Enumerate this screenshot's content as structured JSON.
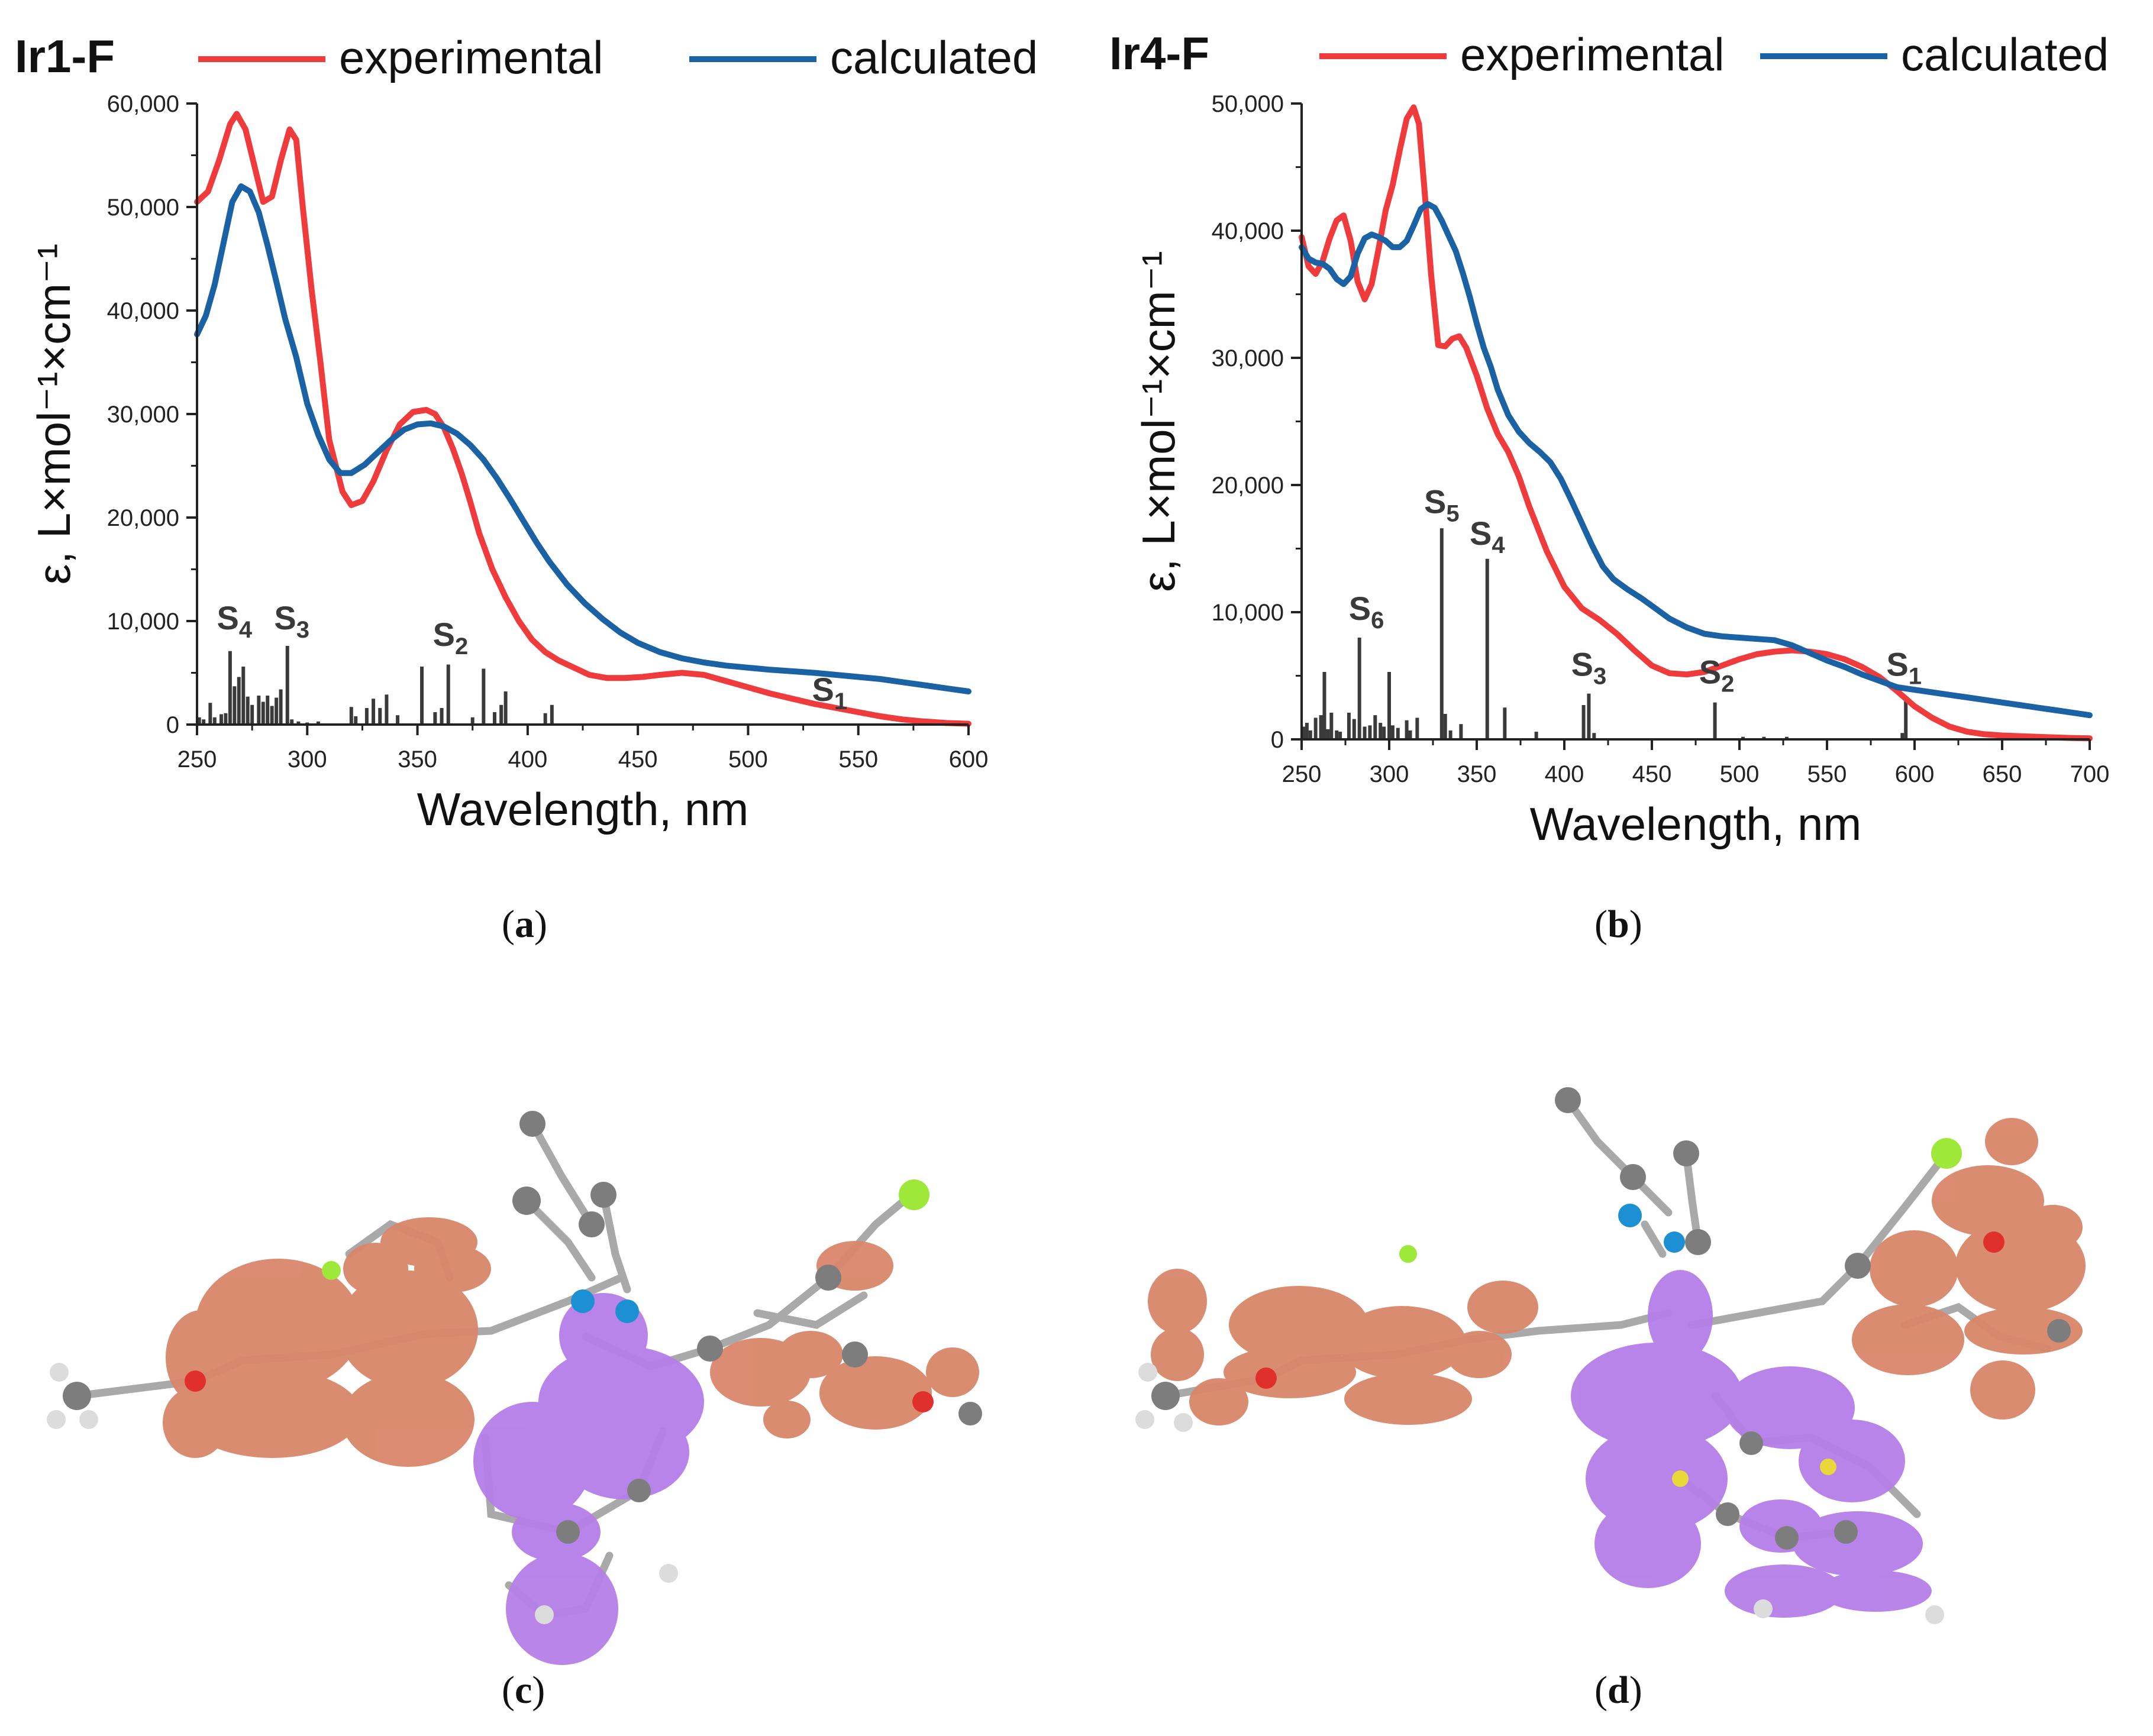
{
  "chart_data": [
    {
      "type": "line",
      "panel_label": "a",
      "compound": "Ir1-F",
      "legend": [
        "experimental",
        "calculated"
      ],
      "colors": {
        "experimental": "#ef3b3b",
        "calculated": "#1a62a3",
        "bars": "#3a3a3a"
      },
      "xlabel": "Wavelength, nm",
      "ylabel": "ε, L×mol⁻¹×cm⁻¹",
      "xlim": [
        250,
        600
      ],
      "ylim": [
        0,
        60000
      ],
      "xticks": [
        250,
        300,
        350,
        400,
        450,
        500,
        550,
        600
      ],
      "yticks": [
        0,
        10000,
        20000,
        30000,
        40000,
        50000,
        60000
      ],
      "ytick_labels": [
        "0",
        "10,000",
        "20,000",
        "30,000",
        "40,000",
        "50,000",
        "60,000"
      ],
      "series": [
        {
          "name": "experimental",
          "x": [
            250,
            255,
            260,
            265,
            268,
            272,
            276,
            280,
            284,
            288,
            292,
            295,
            298,
            302,
            306,
            310,
            316,
            320,
            325,
            330,
            336,
            342,
            348,
            354,
            358,
            362,
            366,
            370,
            374,
            378,
            384,
            390,
            396,
            402,
            408,
            414,
            420,
            428,
            436,
            444,
            452,
            460,
            470,
            480,
            490,
            500,
            510,
            520,
            530,
            540,
            550,
            560,
            570,
            580,
            590,
            600
          ],
          "y": [
            50500,
            51500,
            54500,
            58000,
            59000,
            57500,
            54000,
            50500,
            51000,
            54500,
            57500,
            56500,
            50000,
            42000,
            35000,
            27500,
            22500,
            21200,
            21600,
            23500,
            26500,
            29000,
            30200,
            30400,
            30000,
            28700,
            26700,
            24300,
            21500,
            18500,
            15000,
            12300,
            10000,
            8200,
            7000,
            6200,
            5600,
            4800,
            4500,
            4500,
            4600,
            4800,
            5000,
            4800,
            4200,
            3600,
            3000,
            2500,
            2000,
            1600,
            1200,
            800,
            500,
            300,
            150,
            80
          ]
        },
        {
          "name": "calculated",
          "x": [
            250,
            254,
            258,
            262,
            266,
            270,
            274,
            278,
            282,
            286,
            290,
            295,
            300,
            305,
            310,
            315,
            320,
            326,
            332,
            338,
            344,
            350,
            356,
            362,
            368,
            374,
            380,
            386,
            392,
            398,
            404,
            410,
            418,
            426,
            434,
            442,
            450,
            460,
            470,
            480,
            490,
            500,
            510,
            520,
            530,
            540,
            550,
            560,
            570,
            580,
            590,
            600
          ],
          "y": [
            37700,
            39500,
            42500,
            46500,
            50500,
            52000,
            51500,
            49500,
            46300,
            42800,
            39200,
            35500,
            31000,
            28000,
            25600,
            24300,
            24300,
            25100,
            26300,
            27500,
            28500,
            29000,
            29100,
            28800,
            28100,
            27000,
            25600,
            23800,
            21800,
            19700,
            17600,
            15700,
            13500,
            11700,
            10200,
            8900,
            7900,
            7000,
            6400,
            6000,
            5700,
            5500,
            5300,
            5150,
            5000,
            4800,
            4600,
            4400,
            4100,
            3800,
            3500,
            3200
          ]
        }
      ],
      "transitions": {
        "x": [
          251,
          253,
          256,
          258,
          261,
          263,
          265,
          267,
          269,
          271,
          273,
          275,
          278,
          280,
          282,
          284,
          286,
          288,
          291,
          293,
          296,
          300,
          305,
          320,
          322,
          327,
          330,
          333,
          336,
          341,
          352,
          358,
          361,
          364,
          375,
          380,
          385,
          388,
          390,
          408,
          411
        ],
        "f": [
          700,
          500,
          2100,
          700,
          1000,
          1100,
          7100,
          3700,
          4600,
          5600,
          2700,
          1900,
          2800,
          2200,
          2800,
          1800,
          2600,
          3400,
          7600,
          500,
          300,
          200,
          300,
          1700,
          800,
          1600,
          2500,
          1600,
          2900,
          900,
          5600,
          1200,
          1600,
          5800,
          700,
          5400,
          1200,
          1900,
          3200,
          1100,
          1900
        ]
      },
      "state_labels": [
        {
          "main": "S",
          "sub": "4",
          "x": 267,
          "y": 9200
        },
        {
          "main": "S",
          "sub": "3",
          "x": 293,
          "y": 9200
        },
        {
          "main": "S",
          "sub": "2",
          "x": 365,
          "y": 7600
        },
        {
          "main": "S",
          "sub": "1",
          "x": 537,
          "y": 2300
        }
      ]
    },
    {
      "type": "line",
      "panel_label": "b",
      "compound": "Ir4-F",
      "legend": [
        "experimental",
        "calculated"
      ],
      "colors": {
        "experimental": "#ef3b3b",
        "calculated": "#1a62a3",
        "bars": "#3a3a3a"
      },
      "xlabel": "Wavelength, nm",
      "ylabel": "ε, L×mol⁻¹×cm⁻¹",
      "xlim": [
        250,
        700
      ],
      "ylim": [
        0,
        50000
      ],
      "xticks": [
        250,
        300,
        350,
        400,
        450,
        500,
        550,
        600,
        650,
        700
      ],
      "yticks": [
        0,
        10000,
        20000,
        30000,
        40000,
        50000
      ],
      "ytick_labels": [
        "0",
        "10,000",
        "20,000",
        "30,000",
        "40,000",
        "50,000"
      ],
      "series": [
        {
          "name": "experimental",
          "x": [
            250,
            254,
            258,
            262,
            266,
            270,
            274,
            278,
            282,
            286,
            290,
            294,
            298,
            302,
            306,
            310,
            314,
            317,
            320,
            324,
            328,
            332,
            336,
            340,
            344,
            350,
            356,
            362,
            368,
            374,
            380,
            390,
            400,
            410,
            420,
            430,
            440,
            450,
            460,
            470,
            480,
            490,
            500,
            510,
            520,
            530,
            540,
            550,
            560,
            570,
            580,
            590,
            600,
            610,
            620,
            630,
            640,
            650,
            660,
            670,
            680,
            690,
            700
          ],
          "y": [
            39500,
            37200,
            36600,
            37600,
            39400,
            40800,
            41200,
            39200,
            36000,
            34600,
            35800,
            38600,
            41600,
            43600,
            46300,
            48800,
            49700,
            48400,
            43500,
            36500,
            31000,
            30900,
            31500,
            31700,
            30800,
            28600,
            26000,
            24000,
            22600,
            20700,
            18300,
            14800,
            12000,
            10300,
            9400,
            8300,
            7000,
            5800,
            5200,
            5100,
            5300,
            5800,
            6300,
            6700,
            6900,
            7000,
            6900,
            6700,
            6300,
            5700,
            4900,
            3800,
            2600,
            1700,
            1000,
            600,
            400,
            300,
            250,
            200,
            150,
            100,
            80
          ]
        },
        {
          "name": "calculated",
          "x": [
            250,
            254,
            258,
            262,
            266,
            270,
            274,
            278,
            282,
            286,
            290,
            294,
            298,
            302,
            306,
            310,
            314,
            318,
            322,
            326,
            330,
            334,
            338,
            342,
            346,
            350,
            354,
            358,
            362,
            368,
            374,
            380,
            386,
            392,
            398,
            404,
            410,
            416,
            422,
            428,
            436,
            444,
            452,
            460,
            470,
            480,
            490,
            500,
            510,
            520,
            530,
            540,
            550,
            560,
            570,
            580,
            590,
            600,
            610,
            620,
            630,
            640,
            650,
            660,
            670,
            680,
            690,
            700
          ],
          "y": [
            38700,
            37800,
            37500,
            37400,
            37000,
            36200,
            35800,
            36400,
            38200,
            39400,
            39700,
            39500,
            39200,
            38700,
            38700,
            39200,
            40400,
            41700,
            42100,
            41800,
            40800,
            39600,
            38400,
            36700,
            34800,
            32700,
            30800,
            29300,
            27500,
            25500,
            24200,
            23300,
            22600,
            21800,
            20500,
            18800,
            17000,
            15200,
            13600,
            12600,
            11800,
            11100,
            10300,
            9500,
            8800,
            8300,
            8100,
            8000,
            7900,
            7800,
            7400,
            6800,
            6200,
            5700,
            5100,
            4600,
            4100,
            3900,
            3700,
            3500,
            3300,
            3100,
            2900,
            2700,
            2500,
            2300,
            2100,
            1900
          ]
        }
      ],
      "transitions": {
        "x": [
          251,
          253,
          255,
          258,
          261,
          263,
          265,
          267,
          270,
          272,
          277,
          280,
          283,
          286,
          289,
          292,
          295,
          297,
          300,
          302,
          305,
          310,
          312,
          316,
          330,
          332,
          335,
          341,
          356,
          366,
          384,
          411,
          414,
          417,
          486,
          502,
          514,
          527,
          593,
          595
        ],
        "f": [
          1000,
          1300,
          700,
          1700,
          1900,
          5300,
          800,
          2100,
          700,
          600,
          2100,
          1600,
          8000,
          1000,
          1100,
          1900,
          1300,
          1000,
          5300,
          1100,
          900,
          1500,
          700,
          1700,
          16600,
          2000,
          700,
          1200,
          14200,
          2500,
          600,
          2700,
          3600,
          500,
          2900,
          200,
          200,
          200,
          500,
          3400
        ]
      },
      "state_labels": [
        {
          "main": "S",
          "sub": "6",
          "x": 287,
          "y": 9400
        },
        {
          "main": "S",
          "sub": "5",
          "x": 330,
          "y": 17800
        },
        {
          "main": "S",
          "sub": "4",
          "x": 356,
          "y": 15300
        },
        {
          "main": "S",
          "sub": "3",
          "x": 414,
          "y": 5000
        },
        {
          "main": "S",
          "sub": "2",
          "x": 487,
          "y": 4400
        },
        {
          "main": "S",
          "sub": "1",
          "x": 594,
          "y": 5000
        }
      ]
    }
  ],
  "molecule_panels": [
    {
      "panel_label": "c",
      "colors": {
        "lobe_orange": "#d9866a",
        "lobe_purple": "#b57ee8",
        "atom_carbon": "#7d7d7d",
        "atom_hydrogen": "#dcdcdc",
        "atom_nitrogen": "#1d8fd3",
        "atom_fluorine": "#9ee83a",
        "atom_oxygen": "#e0302c",
        "bond": "#a9a9a9"
      }
    },
    {
      "panel_label": "d",
      "colors": {
        "lobe_orange": "#d9866a",
        "lobe_purple": "#b57ee8",
        "atom_carbon": "#7d7d7d",
        "atom_hydrogen": "#dcdcdc",
        "atom_nitrogen": "#1d8fd3",
        "atom_fluorine": "#9ee83a",
        "atom_oxygen": "#e0302c",
        "atom_sulfur": "#e8d83a",
        "bond": "#a9a9a9"
      }
    }
  ],
  "captions": {
    "a": "a",
    "b": "b",
    "c": "c",
    "d": "d"
  }
}
